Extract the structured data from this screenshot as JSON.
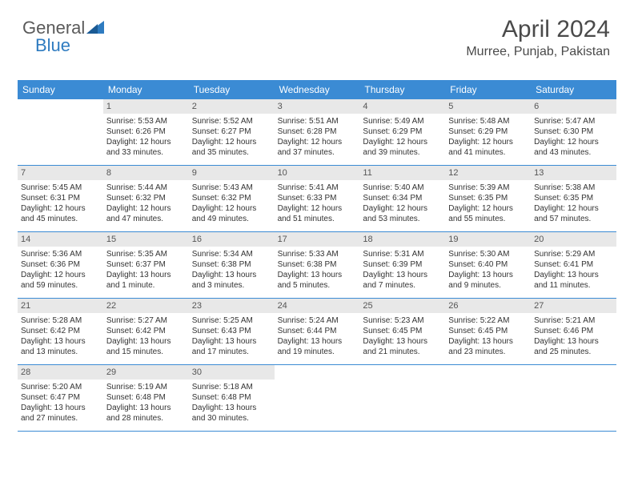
{
  "logo": {
    "text1": "General",
    "text2": "Blue"
  },
  "header": {
    "title": "April 2024",
    "location": "Murree, Punjab, Pakistan"
  },
  "colors": {
    "header_bg": "#3b8bd4",
    "header_text": "#ffffff",
    "daynum_bg": "#e8e8e8",
    "logo_gray": "#5a5a5a",
    "logo_blue": "#2e7bc0",
    "border": "#3b8bd4"
  },
  "day_headers": [
    "Sunday",
    "Monday",
    "Tuesday",
    "Wednesday",
    "Thursday",
    "Friday",
    "Saturday"
  ],
  "weeks": [
    [
      {
        "day": "",
        "sunrise": "",
        "sunset": "",
        "daylight1": "",
        "daylight2": ""
      },
      {
        "day": "1",
        "sunrise": "Sunrise: 5:53 AM",
        "sunset": "Sunset: 6:26 PM",
        "daylight1": "Daylight: 12 hours",
        "daylight2": "and 33 minutes."
      },
      {
        "day": "2",
        "sunrise": "Sunrise: 5:52 AM",
        "sunset": "Sunset: 6:27 PM",
        "daylight1": "Daylight: 12 hours",
        "daylight2": "and 35 minutes."
      },
      {
        "day": "3",
        "sunrise": "Sunrise: 5:51 AM",
        "sunset": "Sunset: 6:28 PM",
        "daylight1": "Daylight: 12 hours",
        "daylight2": "and 37 minutes."
      },
      {
        "day": "4",
        "sunrise": "Sunrise: 5:49 AM",
        "sunset": "Sunset: 6:29 PM",
        "daylight1": "Daylight: 12 hours",
        "daylight2": "and 39 minutes."
      },
      {
        "day": "5",
        "sunrise": "Sunrise: 5:48 AM",
        "sunset": "Sunset: 6:29 PM",
        "daylight1": "Daylight: 12 hours",
        "daylight2": "and 41 minutes."
      },
      {
        "day": "6",
        "sunrise": "Sunrise: 5:47 AM",
        "sunset": "Sunset: 6:30 PM",
        "daylight1": "Daylight: 12 hours",
        "daylight2": "and 43 minutes."
      }
    ],
    [
      {
        "day": "7",
        "sunrise": "Sunrise: 5:45 AM",
        "sunset": "Sunset: 6:31 PM",
        "daylight1": "Daylight: 12 hours",
        "daylight2": "and 45 minutes."
      },
      {
        "day": "8",
        "sunrise": "Sunrise: 5:44 AM",
        "sunset": "Sunset: 6:32 PM",
        "daylight1": "Daylight: 12 hours",
        "daylight2": "and 47 minutes."
      },
      {
        "day": "9",
        "sunrise": "Sunrise: 5:43 AM",
        "sunset": "Sunset: 6:32 PM",
        "daylight1": "Daylight: 12 hours",
        "daylight2": "and 49 minutes."
      },
      {
        "day": "10",
        "sunrise": "Sunrise: 5:41 AM",
        "sunset": "Sunset: 6:33 PM",
        "daylight1": "Daylight: 12 hours",
        "daylight2": "and 51 minutes."
      },
      {
        "day": "11",
        "sunrise": "Sunrise: 5:40 AM",
        "sunset": "Sunset: 6:34 PM",
        "daylight1": "Daylight: 12 hours",
        "daylight2": "and 53 minutes."
      },
      {
        "day": "12",
        "sunrise": "Sunrise: 5:39 AM",
        "sunset": "Sunset: 6:35 PM",
        "daylight1": "Daylight: 12 hours",
        "daylight2": "and 55 minutes."
      },
      {
        "day": "13",
        "sunrise": "Sunrise: 5:38 AM",
        "sunset": "Sunset: 6:35 PM",
        "daylight1": "Daylight: 12 hours",
        "daylight2": "and 57 minutes."
      }
    ],
    [
      {
        "day": "14",
        "sunrise": "Sunrise: 5:36 AM",
        "sunset": "Sunset: 6:36 PM",
        "daylight1": "Daylight: 12 hours",
        "daylight2": "and 59 minutes."
      },
      {
        "day": "15",
        "sunrise": "Sunrise: 5:35 AM",
        "sunset": "Sunset: 6:37 PM",
        "daylight1": "Daylight: 13 hours",
        "daylight2": "and 1 minute."
      },
      {
        "day": "16",
        "sunrise": "Sunrise: 5:34 AM",
        "sunset": "Sunset: 6:38 PM",
        "daylight1": "Daylight: 13 hours",
        "daylight2": "and 3 minutes."
      },
      {
        "day": "17",
        "sunrise": "Sunrise: 5:33 AM",
        "sunset": "Sunset: 6:38 PM",
        "daylight1": "Daylight: 13 hours",
        "daylight2": "and 5 minutes."
      },
      {
        "day": "18",
        "sunrise": "Sunrise: 5:31 AM",
        "sunset": "Sunset: 6:39 PM",
        "daylight1": "Daylight: 13 hours",
        "daylight2": "and 7 minutes."
      },
      {
        "day": "19",
        "sunrise": "Sunrise: 5:30 AM",
        "sunset": "Sunset: 6:40 PM",
        "daylight1": "Daylight: 13 hours",
        "daylight2": "and 9 minutes."
      },
      {
        "day": "20",
        "sunrise": "Sunrise: 5:29 AM",
        "sunset": "Sunset: 6:41 PM",
        "daylight1": "Daylight: 13 hours",
        "daylight2": "and 11 minutes."
      }
    ],
    [
      {
        "day": "21",
        "sunrise": "Sunrise: 5:28 AM",
        "sunset": "Sunset: 6:42 PM",
        "daylight1": "Daylight: 13 hours",
        "daylight2": "and 13 minutes."
      },
      {
        "day": "22",
        "sunrise": "Sunrise: 5:27 AM",
        "sunset": "Sunset: 6:42 PM",
        "daylight1": "Daylight: 13 hours",
        "daylight2": "and 15 minutes."
      },
      {
        "day": "23",
        "sunrise": "Sunrise: 5:25 AM",
        "sunset": "Sunset: 6:43 PM",
        "daylight1": "Daylight: 13 hours",
        "daylight2": "and 17 minutes."
      },
      {
        "day": "24",
        "sunrise": "Sunrise: 5:24 AM",
        "sunset": "Sunset: 6:44 PM",
        "daylight1": "Daylight: 13 hours",
        "daylight2": "and 19 minutes."
      },
      {
        "day": "25",
        "sunrise": "Sunrise: 5:23 AM",
        "sunset": "Sunset: 6:45 PM",
        "daylight1": "Daylight: 13 hours",
        "daylight2": "and 21 minutes."
      },
      {
        "day": "26",
        "sunrise": "Sunrise: 5:22 AM",
        "sunset": "Sunset: 6:45 PM",
        "daylight1": "Daylight: 13 hours",
        "daylight2": "and 23 minutes."
      },
      {
        "day": "27",
        "sunrise": "Sunrise: 5:21 AM",
        "sunset": "Sunset: 6:46 PM",
        "daylight1": "Daylight: 13 hours",
        "daylight2": "and 25 minutes."
      }
    ],
    [
      {
        "day": "28",
        "sunrise": "Sunrise: 5:20 AM",
        "sunset": "Sunset: 6:47 PM",
        "daylight1": "Daylight: 13 hours",
        "daylight2": "and 27 minutes."
      },
      {
        "day": "29",
        "sunrise": "Sunrise: 5:19 AM",
        "sunset": "Sunset: 6:48 PM",
        "daylight1": "Daylight: 13 hours",
        "daylight2": "and 28 minutes."
      },
      {
        "day": "30",
        "sunrise": "Sunrise: 5:18 AM",
        "sunset": "Sunset: 6:48 PM",
        "daylight1": "Daylight: 13 hours",
        "daylight2": "and 30 minutes."
      },
      {
        "day": "",
        "sunrise": "",
        "sunset": "",
        "daylight1": "",
        "daylight2": ""
      },
      {
        "day": "",
        "sunrise": "",
        "sunset": "",
        "daylight1": "",
        "daylight2": ""
      },
      {
        "day": "",
        "sunrise": "",
        "sunset": "",
        "daylight1": "",
        "daylight2": ""
      },
      {
        "day": "",
        "sunrise": "",
        "sunset": "",
        "daylight1": "",
        "daylight2": ""
      }
    ]
  ]
}
